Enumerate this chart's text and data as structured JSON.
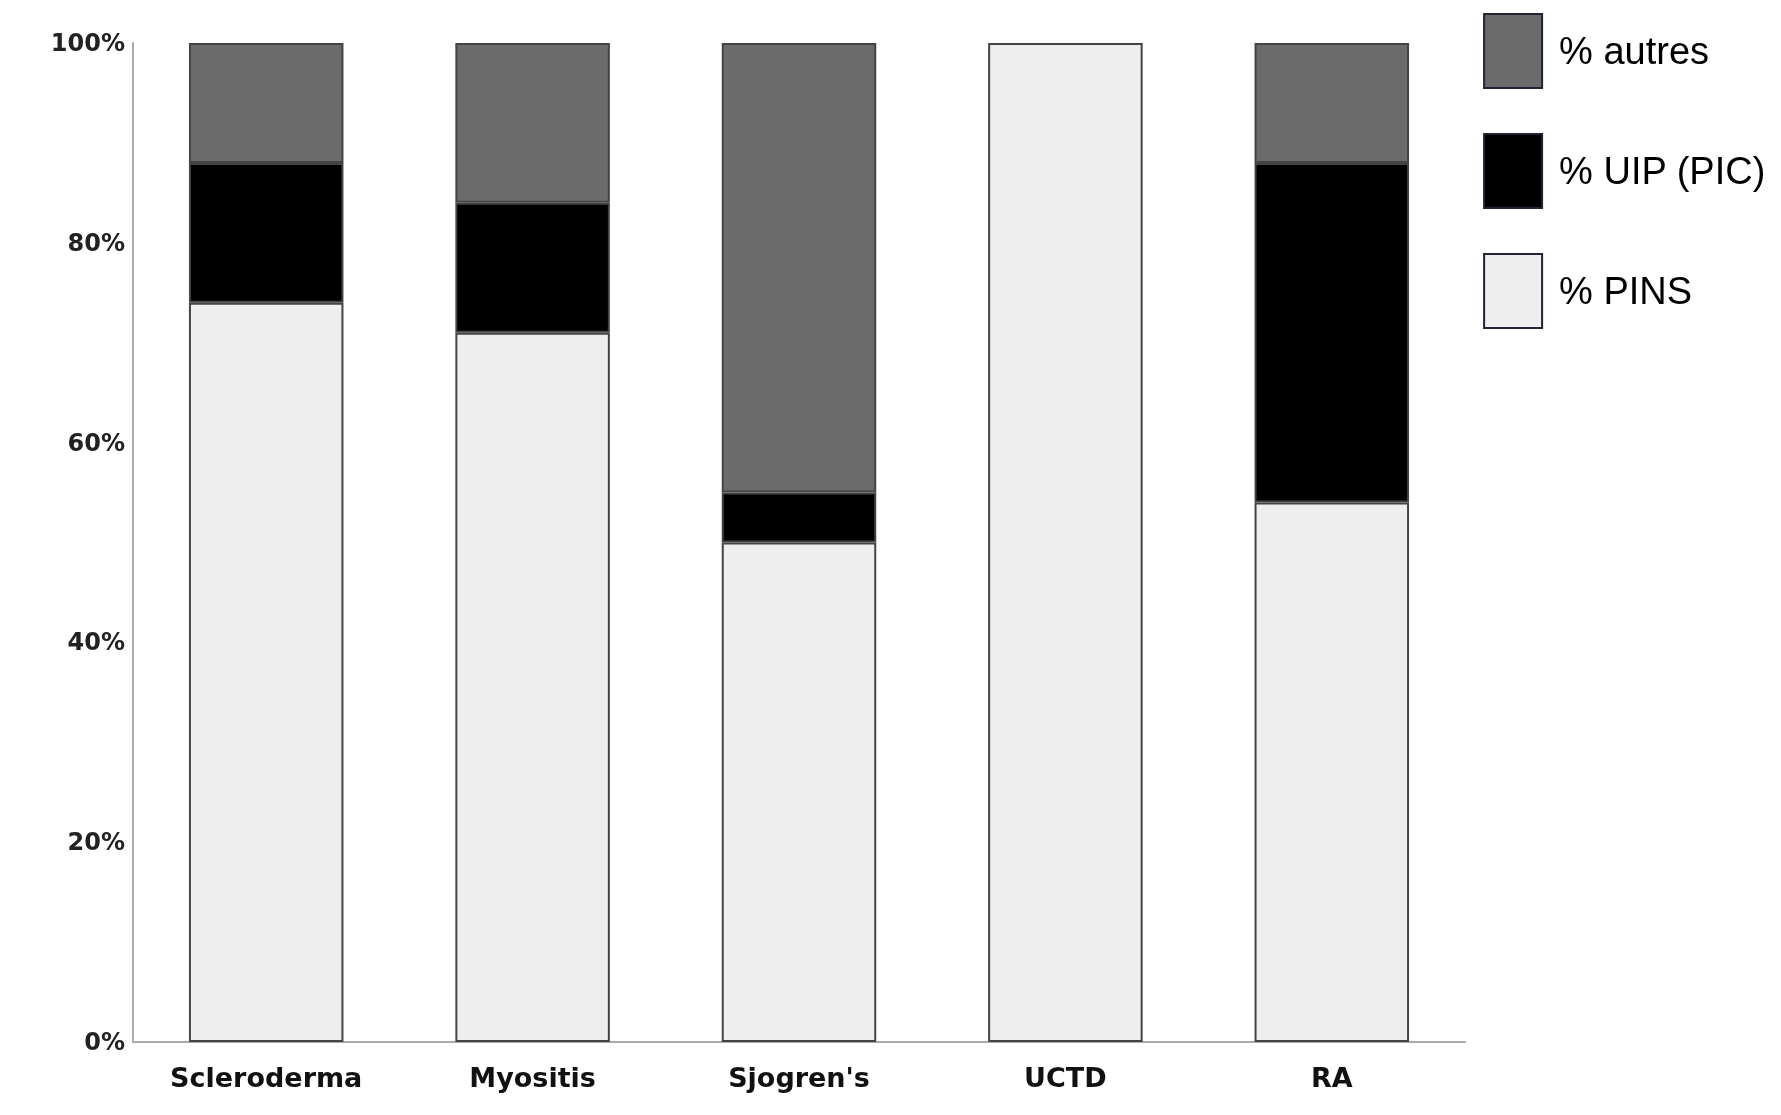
{
  "chart_data": {
    "type": "bar",
    "stacked": true,
    "categories": [
      "Scleroderma",
      "Myositis",
      "Sjogren's",
      "UCTD",
      "RA"
    ],
    "series": [
      {
        "name": "% PINS",
        "color": "#eeeeee",
        "values": [
          74,
          71,
          50,
          100,
          54
        ]
      },
      {
        "name": "% UIP (PIC)",
        "color": "#000000",
        "values": [
          14,
          13,
          5,
          0,
          34
        ]
      },
      {
        "name": "% autres",
        "color": "#6b6b6b",
        "values": [
          12,
          16,
          45,
          0,
          12
        ]
      }
    ],
    "ylim": [
      0,
      100
    ],
    "yticks": [
      {
        "value": 0,
        "label": "0%"
      },
      {
        "value": 20,
        "label": "20%"
      },
      {
        "value": 40,
        "label": "40%"
      },
      {
        "value": 60,
        "label": "60%"
      },
      {
        "value": 80,
        "label": "80%"
      },
      {
        "value": 100,
        "label": "100%"
      }
    ],
    "grid": false,
    "legend": "top right"
  }
}
